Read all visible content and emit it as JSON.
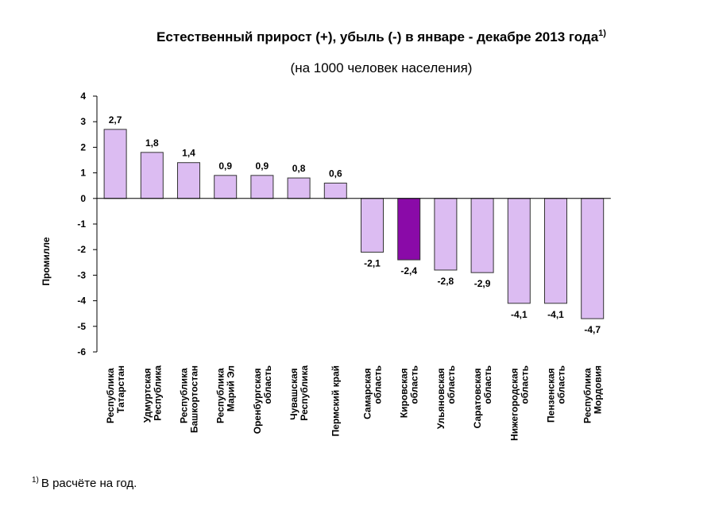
{
  "chart_data": {
    "type": "bar",
    "title": "Естественный прирост (+), убыль (-) в январе - декабре 2013 года",
    "title_superscript": "1)",
    "subtitle": "(на 1000 человек населения)",
    "y_label": "Промилле",
    "categories": [
      "Республика\nТатарстан",
      "Удмуртская\nРеспублика",
      "Республика\nБашкортостан",
      "Республика\nМарий Эл",
      "Оренбургская\nобласть",
      "Чувашская\nРеспублика",
      "Пермский край",
      "Самарская\nобласть",
      "Кировская\nобласть",
      "Ульяновская\nобласть",
      "Саратовская\nобласть",
      "Нижегородская\nобласть",
      "Пензенская\nобласть",
      "Республика\nМордовия"
    ],
    "values": [
      2.7,
      1.8,
      1.4,
      0.9,
      0.9,
      0.8,
      0.6,
      -2.1,
      -2.4,
      -2.8,
      -2.9,
      -4.1,
      -4.1,
      -4.7
    ],
    "value_labels": [
      "2,7",
      "1,8",
      "1,4",
      "0,9",
      "0,9",
      "0,8",
      "0,6",
      "-2,1",
      "-2,4",
      "-2,8",
      "-2,9",
      "-4,1",
      "-4,1",
      "-4,7"
    ],
    "colors": [
      "#dcbcf2",
      "#dcbcf2",
      "#dcbcf2",
      "#dcbcf2",
      "#dcbcf2",
      "#dcbcf2",
      "#dcbcf2",
      "#dcbcf2",
      "#8a0aa8",
      "#dcbcf2",
      "#dcbcf2",
      "#dcbcf2",
      "#dcbcf2",
      "#dcbcf2"
    ],
    "ylim": [
      -6,
      4
    ],
    "yticks": [
      4,
      3,
      2,
      1,
      0,
      -1,
      -2,
      -3,
      -4,
      -5,
      -6
    ],
    "grid": false,
    "footnote": {
      "marker": "1)",
      "text": "В расчёте на год."
    }
  }
}
